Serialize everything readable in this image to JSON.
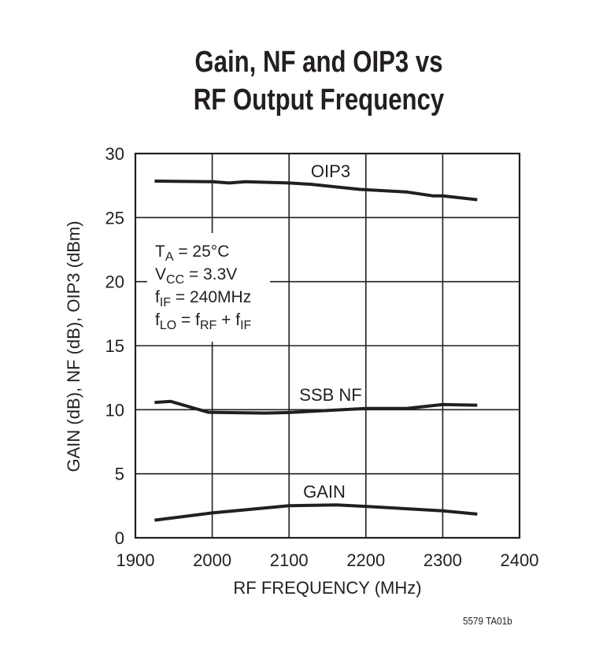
{
  "chart_data": {
    "type": "line",
    "title_lines": [
      "Gain, NF and OIP3 vs",
      "RF Output Frequency"
    ],
    "xlabel": "RF FREQUENCY (MHz)",
    "ylabel": "GAIN (dB), NF (dB), OIP3 (dBm)",
    "xlim": [
      1900,
      2400
    ],
    "ylim": [
      0,
      30
    ],
    "xticks": [
      1900,
      2000,
      2100,
      2200,
      2300,
      2400
    ],
    "yticks": [
      0,
      5,
      10,
      15,
      20,
      25,
      30
    ],
    "grid": true,
    "series": [
      {
        "name": "OIP3",
        "x": [
          1925,
          2000,
          2022,
          2043,
          2100,
          2128,
          2192,
          2253,
          2287,
          2300,
          2345
        ],
        "y": [
          27.85,
          27.8,
          27.7,
          27.8,
          27.7,
          27.6,
          27.2,
          27.0,
          26.7,
          26.7,
          26.4
        ]
      },
      {
        "name": "SSB NF",
        "x": [
          1925,
          1946,
          1995,
          2070,
          2100,
          2200,
          2253,
          2300,
          2345
        ],
        "y": [
          10.57,
          10.65,
          9.8,
          9.74,
          9.78,
          10.1,
          10.1,
          10.41,
          10.35
        ]
      },
      {
        "name": "GAIN",
        "x": [
          1925,
          2000,
          2100,
          2162,
          2200,
          2300,
          2345
        ],
        "y": [
          1.38,
          1.94,
          2.51,
          2.57,
          2.45,
          2.1,
          1.85
        ]
      }
    ],
    "annotation": [
      {
        "main": "T",
        "sub": "A",
        "rest": " = 25°C"
      },
      {
        "main": "V",
        "sub": "CC",
        "rest": " = 3.3V"
      },
      {
        "main": "f",
        "sub": "IF",
        "rest": " = 240MHz"
      },
      {
        "main": "f",
        "sub": "LO",
        "rest": " = f",
        "sub2": "RF",
        "rest2": " + f",
        "sub3": "IF"
      }
    ]
  },
  "figure_code": "5579 TA01b"
}
